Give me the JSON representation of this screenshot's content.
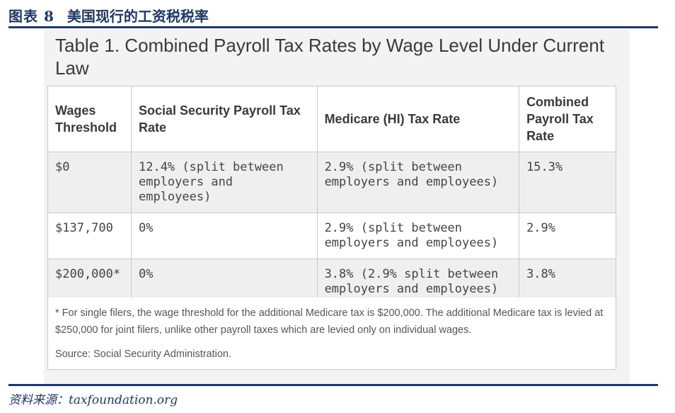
{
  "figure": {
    "label": "图表 8",
    "title": "美国现行的工资税税率"
  },
  "table": {
    "title": "Table 1. Combined Payroll Tax Rates by Wage Level Under Current Law",
    "headers": [
      "Wages Threshold",
      "Social Security Payroll Tax Rate",
      "Medicare (HI) Tax Rate",
      "Combined Payroll Tax Rate"
    ],
    "rows": [
      [
        "$0",
        "12.4% (split between employers and employees)",
        "2.9% (split between employers and employees)",
        "15.3%"
      ],
      [
        "$137,700",
        "0%",
        "2.9% (split between employers and employees)",
        "2.9%"
      ],
      [
        "$200,000*",
        "0%",
        "3.8% (2.9% split between employers and employees)",
        "3.8%"
      ]
    ],
    "footnote": "* For single filers, the wage threshold for the additional Medicare tax is $200,000. The additional Medicare tax is levied at $250,000 for joint filers, unlike other payroll taxes which are levied only on individual wages.",
    "source": "Source: Social Security Administration."
  },
  "source_line": "资料来源：taxfoundation.org"
}
